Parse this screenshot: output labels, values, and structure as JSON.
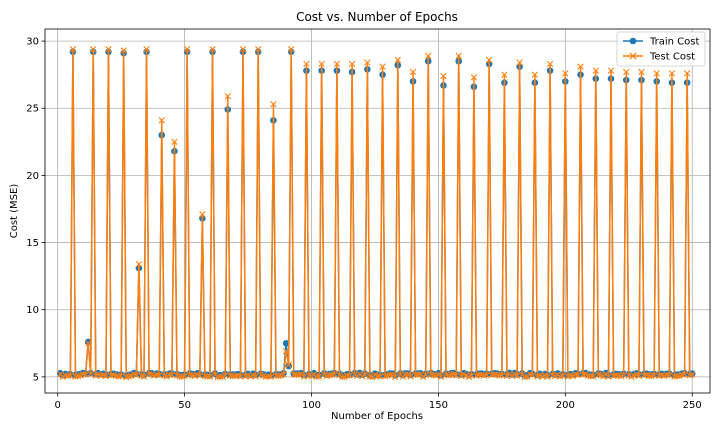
{
  "chart_data": {
    "type": "line",
    "title": "Cost vs. Number of Epochs",
    "xlabel": "Number of Epochs",
    "ylabel": "Cost (MSE)",
    "xlim": [
      -5,
      257
    ],
    "ylim": [
      3.8,
      30.9
    ],
    "xticks": [
      0,
      50,
      100,
      150,
      200,
      250
    ],
    "yticks": [
      5,
      10,
      15,
      20,
      25,
      30
    ],
    "grid": true,
    "legend_position": "top-right",
    "baseline": {
      "start_epoch": 1,
      "end_epoch": 250,
      "train_value": 5.2,
      "test_value": 5.1
    },
    "series": [
      {
        "name": "Train Cost",
        "color": "#1f77b4",
        "marker": "circle",
        "spikes": [
          [
            6,
            29.2
          ],
          [
            12,
            7.6
          ],
          [
            14,
            29.2
          ],
          [
            20,
            29.2
          ],
          [
            26,
            29.1
          ],
          [
            32,
            13.1
          ],
          [
            35,
            29.2
          ],
          [
            41,
            23.0
          ],
          [
            46,
            21.8
          ],
          [
            51,
            29.2
          ],
          [
            57,
            16.8
          ],
          [
            61,
            29.2
          ],
          [
            67,
            24.9
          ],
          [
            73,
            29.2
          ],
          [
            79,
            29.2
          ],
          [
            85,
            24.1
          ],
          [
            90,
            7.5
          ],
          [
            91,
            5.8
          ],
          [
            92,
            29.2
          ],
          [
            98,
            27.8
          ],
          [
            104,
            27.8
          ],
          [
            110,
            27.8
          ],
          [
            116,
            27.7
          ],
          [
            122,
            27.9
          ],
          [
            128,
            27.5
          ],
          [
            134,
            28.2
          ],
          [
            140,
            27.0
          ],
          [
            146,
            28.5
          ],
          [
            152,
            26.7
          ],
          [
            158,
            28.5
          ],
          [
            164,
            26.6
          ],
          [
            170,
            28.3
          ],
          [
            176,
            26.9
          ],
          [
            182,
            28.1
          ],
          [
            188,
            26.9
          ],
          [
            194,
            27.8
          ],
          [
            200,
            27.0
          ],
          [
            206,
            27.5
          ],
          [
            212,
            27.2
          ],
          [
            218,
            27.2
          ],
          [
            224,
            27.1
          ],
          [
            230,
            27.1
          ],
          [
            236,
            27.0
          ],
          [
            242,
            26.9
          ],
          [
            248,
            26.9
          ]
        ]
      },
      {
        "name": "Test Cost",
        "color": "#ff7f0e",
        "marker": "x",
        "spikes": [
          [
            6,
            29.4
          ],
          [
            12,
            7.5
          ],
          [
            14,
            29.4
          ],
          [
            20,
            29.4
          ],
          [
            26,
            29.3
          ],
          [
            32,
            13.4
          ],
          [
            35,
            29.4
          ],
          [
            41,
            24.1
          ],
          [
            46,
            22.5
          ],
          [
            51,
            29.4
          ],
          [
            57,
            17.1
          ],
          [
            61,
            29.4
          ],
          [
            67,
            25.9
          ],
          [
            73,
            29.4
          ],
          [
            79,
            29.4
          ],
          [
            85,
            25.3
          ],
          [
            90,
            6.9
          ],
          [
            91,
            5.9
          ],
          [
            92,
            29.4
          ],
          [
            98,
            28.3
          ],
          [
            104,
            28.3
          ],
          [
            110,
            28.3
          ],
          [
            116,
            28.3
          ],
          [
            122,
            28.4
          ],
          [
            128,
            28.1
          ],
          [
            134,
            28.6
          ],
          [
            140,
            27.7
          ],
          [
            146,
            28.9
          ],
          [
            152,
            27.4
          ],
          [
            158,
            28.9
          ],
          [
            164,
            27.3
          ],
          [
            170,
            28.6
          ],
          [
            176,
            27.5
          ],
          [
            182,
            28.4
          ],
          [
            188,
            27.5
          ],
          [
            194,
            28.3
          ],
          [
            200,
            27.6
          ],
          [
            206,
            28.1
          ],
          [
            212,
            27.8
          ],
          [
            218,
            27.8
          ],
          [
            224,
            27.7
          ],
          [
            230,
            27.7
          ],
          [
            236,
            27.6
          ],
          [
            242,
            27.6
          ],
          [
            248,
            27.6
          ]
        ]
      }
    ]
  }
}
